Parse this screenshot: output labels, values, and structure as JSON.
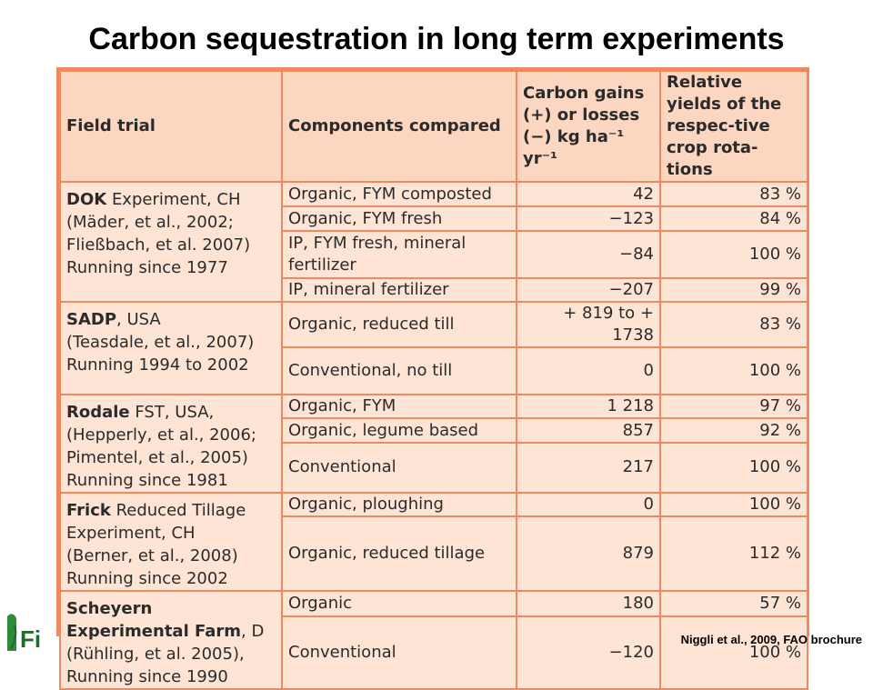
{
  "title": "Carbon sequestration in long term experiments",
  "headers": {
    "field_trial": "Field trial",
    "components": "Components compared",
    "carbon": "Carbon gains (+) or losses (−) kg ha⁻¹ yr⁻¹",
    "yields": "Relative yields of the respec-tive crop rota-tions"
  },
  "trials": [
    {
      "name": "DOK",
      "rest": "Experiment, CH",
      "lines": [
        "(Mäder, et al., 2002;",
        "Fließbach, et al. 2007)",
        "Running since 1977"
      ]
    },
    {
      "name": "SADP",
      "rest": ", USA",
      "lines": [
        "(Teasdale, et al., 2007)",
        "Running 1994 to 2002"
      ]
    },
    {
      "name": "Rodale",
      "rest": "FST, USA,",
      "lines": [
        "(Hepperly, et al., 2006;",
        "Pimentel, et al., 2005)",
        "Running since 1981"
      ]
    },
    {
      "name": "Frick",
      "rest": "Reduced Tillage",
      "lines": [
        "Experiment, CH",
        "(Berner, et al., 2008)",
        "Running since 2002"
      ]
    },
    {
      "name": "Scheyern Experimental Farm",
      "rest": ", D",
      "lines": [
        "(Rühling, et al. 2005),",
        "Running since 1990"
      ]
    }
  ],
  "rows": [
    {
      "component": "Organic, FYM composted",
      "carbon": "42",
      "yield": "83 %"
    },
    {
      "component": "Organic, FYM fresh",
      "carbon": "−123",
      "yield": "84 %"
    },
    {
      "component": "IP, FYM fresh, mineral fertilizer",
      "carbon": "−84",
      "yield": "100 %"
    },
    {
      "component": "IP, mineral fertilizer",
      "carbon": "−207",
      "yield": "99 %"
    },
    {
      "component": "Organic, reduced till",
      "carbon": "+ 819 to + 1738",
      "yield": "83 %"
    },
    {
      "component": "Conventional, no till",
      "carbon": "0",
      "yield": "100 %"
    },
    {
      "component": "Organic, FYM",
      "carbon": "1 218",
      "yield": "97 %"
    },
    {
      "component": "Organic, legume based",
      "carbon": "857",
      "yield": "92 %"
    },
    {
      "component": "Conventional",
      "carbon": "217",
      "yield": "100 %"
    },
    {
      "component": "Organic, ploughing",
      "carbon": "0",
      "yield": "100 %"
    },
    {
      "component": "Organic, reduced tillage",
      "carbon": "879",
      "yield": "112 %"
    },
    {
      "component": "Organic",
      "carbon": "180",
      "yield": "57 %"
    },
    {
      "component": "Conventional",
      "carbon": "−120",
      "yield": "100 %"
    }
  ],
  "logo_text": "Fi",
  "credit": "Niggli et al., 2009, FAO brochure"
}
